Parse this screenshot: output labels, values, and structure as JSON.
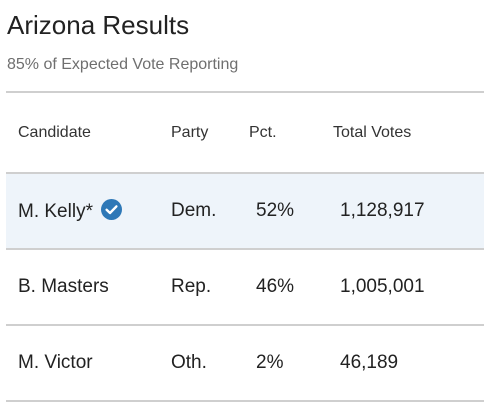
{
  "header": {
    "title": "Arizona Results",
    "subtitle": "85% of Expected Vote Reporting"
  },
  "table": {
    "columns": {
      "candidate": "Candidate",
      "party": "Party",
      "pct": "Pct.",
      "votes": "Total Votes"
    },
    "rows": [
      {
        "candidate": "M. Kelly*",
        "party": "Dem.",
        "pct": "52%",
        "votes": "1,128,917",
        "winner": true
      },
      {
        "candidate": "B. Masters",
        "party": "Rep.",
        "pct": "46%",
        "votes": "1,005,001",
        "winner": false
      },
      {
        "candidate": "M. Victor",
        "party": "Oth.",
        "pct": "2%",
        "votes": "46,189",
        "winner": false
      }
    ]
  },
  "icons": {
    "winner": "check-circle-icon"
  },
  "colors": {
    "winner_row_bg": "#eef4fa",
    "check_icon": "#2e78b7",
    "divider": "#cfcfcf",
    "subtitle_text": "#6f6f6f"
  }
}
